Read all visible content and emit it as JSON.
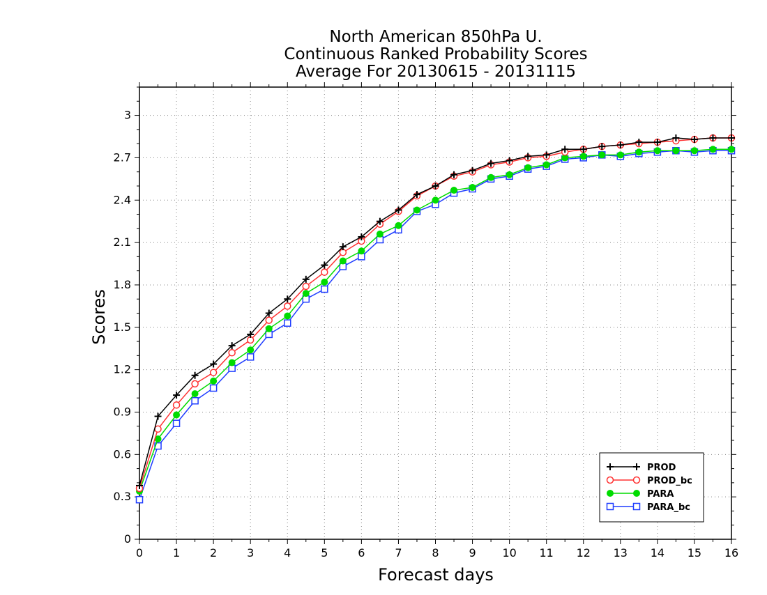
{
  "chart_data": {
    "type": "line",
    "title_lines": [
      "North American 850hPa U.",
      "Continuous Ranked Probability Scores",
      "Average For 20130615 - 20131115"
    ],
    "xlabel": "Forecast days",
    "ylabel": "Scores",
    "xlim": [
      0,
      16
    ],
    "ylim": [
      0,
      3.2
    ],
    "x_ticks": [
      0,
      1,
      2,
      3,
      4,
      5,
      6,
      7,
      8,
      9,
      10,
      11,
      12,
      13,
      14,
      15,
      16
    ],
    "x_tick_labels": [
      "0",
      "1",
      "2",
      "3",
      "4",
      "5",
      "6",
      "7",
      "8",
      "9",
      "10",
      "11",
      "12",
      "13",
      "14",
      "15",
      "16"
    ],
    "y_ticks": [
      0,
      0.3,
      0.6,
      0.9,
      1.2,
      1.5,
      1.8,
      2.1,
      2.4,
      2.7,
      3.0
    ],
    "y_tick_labels": [
      "0",
      "0.3",
      "0.6",
      "0.9",
      "1.2",
      "1.5",
      "1.8",
      "2.1",
      "2.4",
      "2.7",
      "3"
    ],
    "grid": true,
    "legend_position": "bottom-right",
    "x": [
      0,
      0.5,
      1,
      1.5,
      2,
      2.5,
      3,
      3.5,
      4,
      4.5,
      5,
      5.5,
      6,
      6.5,
      7,
      7.5,
      8,
      8.5,
      9,
      9.5,
      10,
      10.5,
      11,
      11.5,
      12,
      12.5,
      13,
      13.5,
      14,
      14.5,
      15,
      15.5,
      16
    ],
    "series": [
      {
        "name": "PROD",
        "color": "#000000",
        "marker": "plus",
        "values": [
          0.38,
          0.87,
          1.02,
          1.16,
          1.24,
          1.37,
          1.45,
          1.6,
          1.7,
          1.84,
          1.94,
          2.07,
          2.14,
          2.25,
          2.33,
          2.44,
          2.5,
          2.58,
          2.61,
          2.66,
          2.68,
          2.71,
          2.72,
          2.76,
          2.76,
          2.78,
          2.79,
          2.81,
          2.81,
          2.84,
          2.83,
          2.84,
          2.84
        ]
      },
      {
        "name": "PROD_bc",
        "color": "#ff3030",
        "marker": "open-circle",
        "values": [
          0.36,
          0.78,
          0.95,
          1.1,
          1.18,
          1.32,
          1.41,
          1.55,
          1.65,
          1.79,
          1.89,
          2.03,
          2.11,
          2.23,
          2.32,
          2.43,
          2.5,
          2.57,
          2.6,
          2.65,
          2.67,
          2.7,
          2.71,
          2.74,
          2.76,
          2.78,
          2.79,
          2.8,
          2.81,
          2.82,
          2.83,
          2.84,
          2.84
        ]
      },
      {
        "name": "PARA",
        "color": "#00dc00",
        "marker": "filled-circle",
        "values": [
          0.34,
          0.71,
          0.88,
          1.03,
          1.12,
          1.25,
          1.34,
          1.49,
          1.58,
          1.74,
          1.82,
          1.97,
          2.04,
          2.16,
          2.22,
          2.33,
          2.4,
          2.47,
          2.49,
          2.56,
          2.58,
          2.63,
          2.65,
          2.7,
          2.71,
          2.72,
          2.72,
          2.74,
          2.75,
          2.75,
          2.75,
          2.76,
          2.76
        ]
      },
      {
        "name": "PARA_bc",
        "color": "#1e3cff",
        "marker": "open-square",
        "values": [
          0.28,
          0.66,
          0.82,
          0.98,
          1.07,
          1.21,
          1.29,
          1.45,
          1.53,
          1.7,
          1.77,
          1.93,
          2.0,
          2.12,
          2.19,
          2.32,
          2.37,
          2.45,
          2.48,
          2.55,
          2.57,
          2.62,
          2.64,
          2.69,
          2.7,
          2.72,
          2.71,
          2.73,
          2.74,
          2.75,
          2.74,
          2.75,
          2.75
        ]
      }
    ]
  }
}
